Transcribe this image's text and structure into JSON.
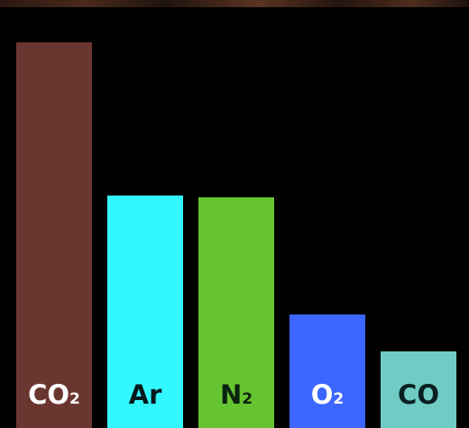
{
  "chart_data": {
    "type": "bar",
    "title": "",
    "xlabel": "",
    "ylabel": "",
    "categories": [
      "CO2",
      "Ar",
      "N2",
      "O2",
      "CO"
    ],
    "values": [
      95.3,
      57.5,
      57.0,
      28.0,
      19.0
    ],
    "category_labels": [
      {
        "main": "CO",
        "sub": "2"
      },
      {
        "main": "Ar",
        "sub": ""
      },
      {
        "main": "N",
        "sub": "2"
      },
      {
        "main": "O",
        "sub": "2"
      },
      {
        "main": "CO",
        "sub": ""
      }
    ],
    "bar_colors": [
      "#6b3530",
      "#33f7ff",
      "#66c430",
      "#3b66ff",
      "#6fcbc4"
    ],
    "label_colors": [
      "#ffffff",
      "#08191c",
      "#0b2211",
      "#ffffff",
      "#082022"
    ],
    "ylim": [
      0,
      100
    ],
    "axes_visible": false,
    "grid": false,
    "legend": "none",
    "background": "#000000"
  }
}
